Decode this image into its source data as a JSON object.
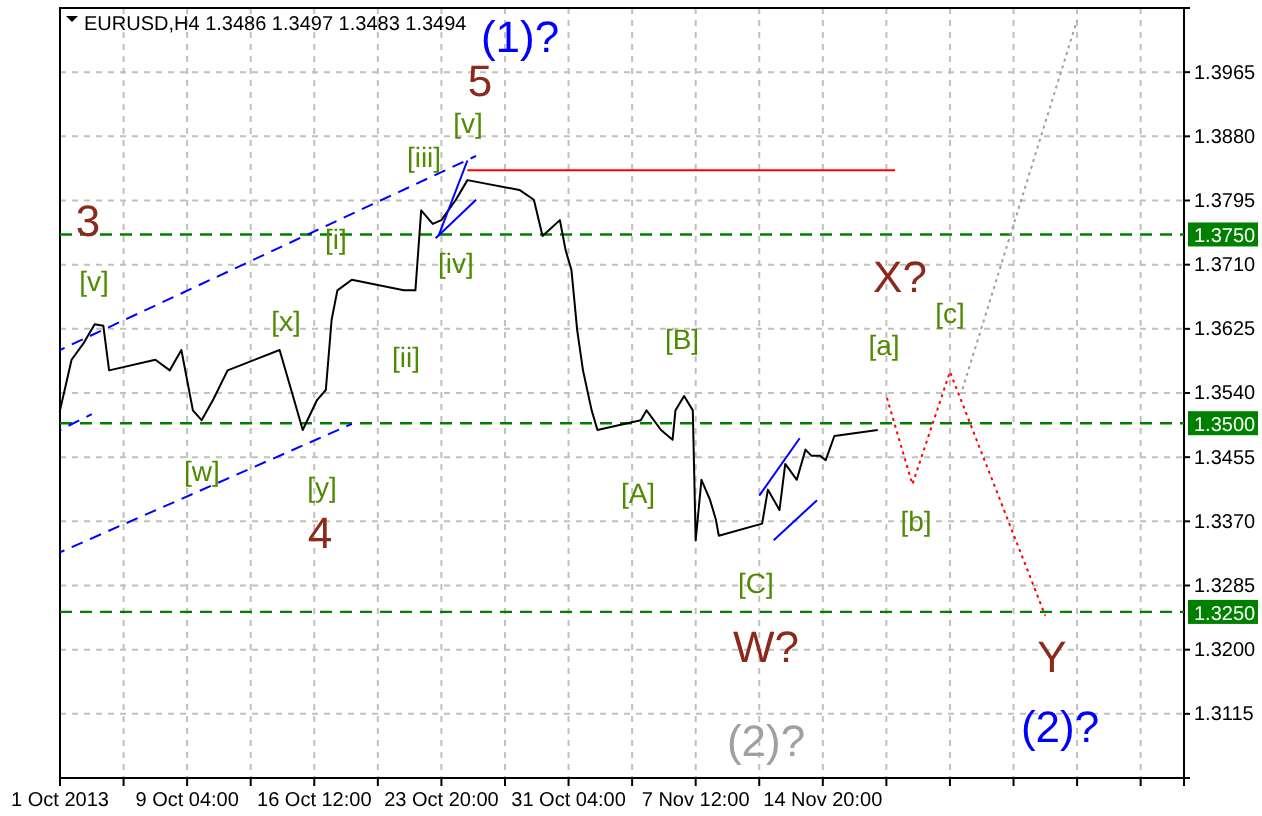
{
  "chart_data": {
    "type": "line",
    "title": "EURUSD,H4  1.3486 1.3497 1.3483 1.3494",
    "xlim": [
      "2013-10-01T20:00",
      "2013-12-05T16:00"
    ],
    "ylim": [
      1.303,
      1.405
    ],
    "xticks": [
      {
        "value": "2013-10-01T20:00",
        "label": "1 Oct 2013"
      },
      {
        "value": "2013-10-05T12:00",
        "label": null
      },
      {
        "value": "2013-10-09T04:00",
        "label": "9 Oct 04:00"
      },
      {
        "value": "2013-10-12T20:00",
        "label": null
      },
      {
        "value": "2013-10-16T12:00",
        "label": "16 Oct 12:00"
      },
      {
        "value": "2013-10-20T04:00",
        "label": null
      },
      {
        "value": "2013-10-23T20:00",
        "label": "23 Oct 20:00"
      },
      {
        "value": "2013-10-27T12:00",
        "label": null
      },
      {
        "value": "2013-10-31T04:00",
        "label": "31 Oct 04:00"
      },
      {
        "value": "2013-11-03T20:00",
        "label": null
      },
      {
        "value": "2013-11-07T12:00",
        "label": "7 Nov 12:00"
      },
      {
        "value": "2013-11-11T04:00",
        "label": null
      },
      {
        "value": "2013-11-14T20:00",
        "label": "14 Nov 20:00"
      },
      {
        "value": "2013-11-18T12:00",
        "label": null
      },
      {
        "value": "2013-11-22T04:00",
        "label": null
      },
      {
        "value": "2013-11-25T20:00",
        "label": null
      },
      {
        "value": "2013-11-29T12:00",
        "label": null
      },
      {
        "value": "2013-12-03T04:00",
        "label": null
      }
    ],
    "yticks": [
      {
        "value": 1.3965,
        "label": "1.3965"
      },
      {
        "value": 1.388,
        "label": "1.3880"
      },
      {
        "value": 1.3795,
        "label": "1.3795"
      },
      {
        "value": 1.371,
        "label": "1.3710"
      },
      {
        "value": 1.3625,
        "label": "1.3625"
      },
      {
        "value": 1.354,
        "label": "1.3540"
      },
      {
        "value": 1.3455,
        "label": "1.3455"
      },
      {
        "value": 1.337,
        "label": "1.3370"
      },
      {
        "value": 1.3285,
        "label": "1.3285"
      },
      {
        "value": 1.32,
        "label": "1.3200"
      },
      {
        "value": 1.3115,
        "label": "1.3115"
      }
    ],
    "grid": true,
    "marker": "none",
    "series": [
      {
        "color": "#000000",
        "line_style": "solid",
        "x": [
          "2013-10-01T20:00",
          "2013-10-02T12:00",
          "2013-10-03T04:00",
          "2013-10-03T20:00",
          "2013-10-04T08:00",
          "2013-10-04T16:00",
          "2013-10-07T08:00",
          "2013-10-08T04:00",
          "2013-10-08T20:00",
          "2013-10-09T12:00",
          "2013-10-10T00:00",
          "2013-10-10T16:00",
          "2013-10-11T12:00",
          "2013-10-14T12:00",
          "2013-10-15T08:00",
          "2013-10-15T20:00",
          "2013-10-16T16:00",
          "2013-10-17T04:00",
          "2013-10-17T12:00",
          "2013-10-17T20:00",
          "2013-10-18T16:00",
          "2013-10-21T16:00",
          "2013-10-22T08:00",
          "2013-10-22T16:00",
          "2013-10-23T08:00",
          "2013-10-23T20:00",
          "2013-10-24T16:00",
          "2013-10-25T08:00",
          "2013-10-28T08:00",
          "2013-10-29T04:00",
          "2013-10-29T16:00",
          "2013-10-30T16:00",
          "2013-10-31T00:00",
          "2013-10-31T08:00",
          "2013-10-31T16:00",
          "2013-11-01T00:00",
          "2013-11-01T12:00",
          "2013-11-01T20:00",
          "2013-11-04T08:00",
          "2013-11-04T16:00",
          "2013-11-05T12:00",
          "2013-11-06T04:00",
          "2013-11-06T08:00",
          "2013-11-06T20:00",
          "2013-11-07T08:00",
          "2013-11-07T12:00",
          "2013-11-07T20:00",
          "2013-11-08T08:00",
          "2013-11-08T16:00",
          "2013-11-08T20:00",
          "2013-11-11T08:00",
          "2013-11-11T16:00",
          "2013-11-12T08:00",
          "2013-11-12T16:00",
          "2013-11-13T08:00",
          "2013-11-13T20:00",
          "2013-11-14T04:00",
          "2013-11-14T16:00",
          "2013-11-15T00:00",
          "2013-11-15T12:00",
          "2013-11-18T00:00"
        ],
        "values": [
          1.3517,
          1.3584,
          1.3605,
          1.3631,
          1.3629,
          1.357,
          1.3584,
          1.357,
          1.3597,
          1.3517,
          1.3504,
          1.3531,
          1.357,
          1.3597,
          1.3531,
          1.3491,
          1.3531,
          1.3544,
          1.3637,
          1.3676,
          1.369,
          1.3676,
          1.3676,
          1.3782,
          1.3764,
          1.3769,
          1.3796,
          1.3822,
          1.3809,
          1.3796,
          1.3748,
          1.3769,
          1.3729,
          1.3703,
          1.3623,
          1.357,
          1.3517,
          1.3491,
          1.3504,
          1.3517,
          1.3491,
          1.3478,
          1.3517,
          1.3536,
          1.3517,
          1.3345,
          1.3425,
          1.3398,
          1.3372,
          1.3351,
          1.3367,
          1.3412,
          1.3385,
          1.3446,
          1.3425,
          1.3465,
          1.3457,
          1.3457,
          1.3451,
          1.3483,
          1.3491
        ]
      },
      {
        "color": "#0000ff",
        "line_style": "dashed",
        "x": [
          "2013-10-01T20:00",
          "2013-10-25T20:00"
        ],
        "values": [
          1.3597,
          1.3854
        ]
      },
      {
        "color": "#0000ff",
        "line_style": "dashed",
        "x": [
          "2013-10-01T20:00",
          "2013-10-18T16:00"
        ],
        "values": [
          1.3329,
          1.3499
        ]
      },
      {
        "color": "#0000ff",
        "line_style": "dashed",
        "x": [
          "2013-10-01T20:00",
          "2013-10-03T16:00"
        ],
        "values": [
          1.3491,
          1.3512
        ]
      },
      {
        "color": "#0000ff",
        "line_style": "solid",
        "x": [
          "2013-10-23T16:00",
          "2013-10-25T08:00"
        ],
        "values": [
          1.3748,
          1.3848
        ]
      },
      {
        "color": "#0000ff",
        "line_style": "solid",
        "x": [
          "2013-10-23T12:00",
          "2013-10-25T20:00"
        ],
        "values": [
          1.3745,
          1.3796
        ]
      },
      {
        "color": "#0000ff",
        "line_style": "solid",
        "x": [
          "2013-11-11T04:00",
          "2013-11-13T12:00"
        ],
        "values": [
          1.3404,
          1.348
        ]
      },
      {
        "color": "#0000ff",
        "line_style": "solid",
        "x": [
          "2013-11-12T00:00",
          "2013-11-14T12:00"
        ],
        "values": [
          1.3345,
          1.3398
        ]
      },
      {
        "color": "#ff0000",
        "line_style": "solid",
        "x": [
          "2013-10-25T08:00",
          "2013-11-19T00:00"
        ],
        "values": [
          1.3835,
          1.3835
        ]
      },
      {
        "color": "#ff0000",
        "line_style": "dotted",
        "x": [
          "2013-11-18T12:00",
          "2013-11-20T00:00",
          "2013-11-22T04:00",
          "2013-11-27T16:00"
        ],
        "values": [
          1.3536,
          1.3419,
          1.3568,
          1.3245
        ]
      },
      {
        "color": "#a0a0a0",
        "line_style": "dotted",
        "x": [
          "2013-11-22T20:00",
          "2013-11-29T12:00"
        ],
        "values": [
          1.3541,
          1.4034
        ]
      }
    ],
    "ref_lines": [
      {
        "axis": "y",
        "value": 1.375,
        "label": "1.3750",
        "color": "#008000",
        "line_style": "dashed"
      },
      {
        "axis": "y",
        "value": 1.35,
        "label": "1.3500",
        "color": "#008000",
        "line_style": "dashed"
      },
      {
        "axis": "y",
        "value": 1.325,
        "label": "1.3250",
        "color": "#008000",
        "line_style": "dashed"
      }
    ],
    "annotations": [
      "(1)?",
      "5",
      "[v]",
      "[iii]",
      "[i]",
      "[iv]",
      "3",
      "[v]",
      "[x]",
      "[ii]",
      "[w]",
      "[y]",
      "4",
      "[B]",
      "[A]",
      "[C]",
      "W?",
      "(2)?",
      "X?",
      "[a]",
      "[b]",
      "[c]",
      "Y",
      "(2)?"
    ]
  }
}
